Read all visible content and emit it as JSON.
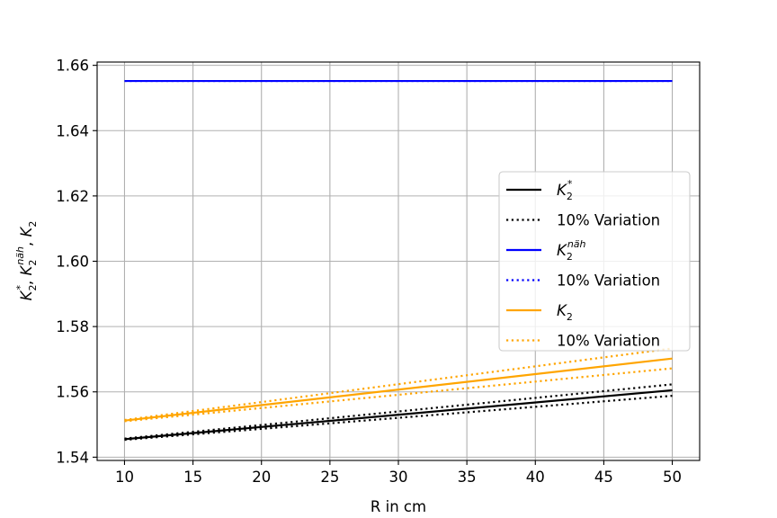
{
  "chart_data": {
    "type": "line",
    "title": "",
    "xlabel": "R in cm",
    "ylabel": "K_2^*, K_2^{näh}, K_2",
    "xlim": [
      8,
      52
    ],
    "ylim": [
      1.539,
      1.661
    ],
    "xticks": [
      10,
      15,
      20,
      25,
      30,
      35,
      40,
      45,
      50
    ],
    "yticks": [
      1.54,
      1.56,
      1.58,
      1.6,
      1.62,
      1.64,
      1.66
    ],
    "xtick_labels": [
      "10",
      "15",
      "20",
      "25",
      "30",
      "35",
      "40",
      "45",
      "50"
    ],
    "ytick_labels": [
      "1.54",
      "1.56",
      "1.58",
      "1.60",
      "1.62",
      "1.64",
      "1.66"
    ],
    "grid": true,
    "legend_position": "center-right",
    "series": [
      {
        "name": "K2*",
        "color": "#000000",
        "style": "solid",
        "x": [
          10,
          50
        ],
        "y": [
          1.5455,
          1.5605
        ]
      },
      {
        "name": "10% Variation",
        "color": "#000000",
        "style": "dotted",
        "x": [
          10,
          50
        ],
        "y": [
          1.5457,
          1.5623
        ]
      },
      {
        "name": "",
        "color": "#000000",
        "style": "dotted",
        "x": [
          10,
          50
        ],
        "y": [
          1.5453,
          1.5588
        ]
      },
      {
        "name": "K2näh",
        "color": "#0000ff",
        "style": "solid",
        "x": [
          10,
          50
        ],
        "y": [
          1.6552,
          1.6552
        ]
      },
      {
        "name": "10% Variation",
        "color": "#0000ff",
        "style": "dotted",
        "x": [
          10,
          50
        ],
        "y": [
          1.6552,
          1.6552
        ]
      },
      {
        "name": "K2",
        "color": "#ffa500",
        "style": "solid",
        "x": [
          10,
          50
        ],
        "y": [
          1.5512,
          1.5702
        ]
      },
      {
        "name": "10% Variation",
        "color": "#ffa500",
        "style": "dotted",
        "x": [
          10,
          50
        ],
        "y": [
          1.5514,
          1.5733
        ]
      },
      {
        "name": "",
        "color": "#ffa500",
        "style": "dotted",
        "x": [
          10,
          50
        ],
        "y": [
          1.551,
          1.5672
        ]
      }
    ],
    "legend": [
      {
        "label": "K",
        "sub": "2",
        "sup": "*",
        "color": "#000000",
        "style": "solid"
      },
      {
        "label": "10% Variation",
        "sub": "",
        "sup": "",
        "color": "#000000",
        "style": "dotted"
      },
      {
        "label": "K",
        "sub": "2",
        "sup": "näh",
        "color": "#0000ff",
        "style": "solid"
      },
      {
        "label": "10% Variation",
        "sub": "",
        "sup": "",
        "color": "#0000ff",
        "style": "dotted"
      },
      {
        "label": "K",
        "sub": "2",
        "sup": "",
        "color": "#ffa500",
        "style": "solid"
      },
      {
        "label": "10% Variation",
        "sub": "",
        "sup": "",
        "color": "#ffa500",
        "style": "dotted"
      }
    ]
  }
}
